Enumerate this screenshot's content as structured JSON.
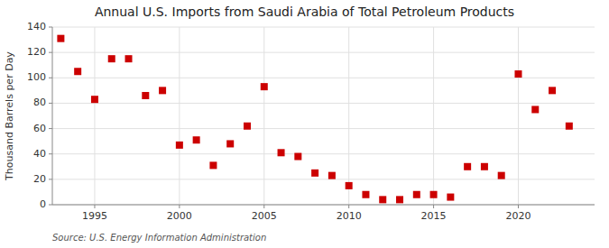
{
  "chart_data": {
    "type": "scatter",
    "title": "Annual U.S. Imports from Saudi Arabia of Total Petroleum Products",
    "y_label": "Thousand Barrels per Day",
    "annotations": [
      "Source: U.S. Energy Information Administration"
    ],
    "x": [
      1993,
      1994,
      1995,
      1996,
      1997,
      1998,
      1999,
      2000,
      2001,
      2002,
      2003,
      2004,
      2005,
      2006,
      2007,
      2008,
      2009,
      2010,
      2011,
      2012,
      2013,
      2014,
      2015,
      2016,
      2017,
      2018,
      2019,
      2020,
      2021,
      2022,
      2023
    ],
    "values": [
      131,
      105,
      83,
      115,
      115,
      86,
      90,
      47,
      51,
      31,
      48,
      62,
      93,
      41,
      38,
      25,
      23,
      15,
      8,
      4,
      4,
      8,
      8,
      6,
      30,
      30,
      23,
      103,
      75,
      90,
      62
    ],
    "color": "#cc0000",
    "marker": "square",
    "xlim": [
      1992.5,
      2024.5
    ],
    "xticks": [
      1995,
      2000,
      2005,
      2010,
      2015,
      2020
    ],
    "ylim": [
      0,
      140
    ],
    "yticks": [
      0,
      20,
      40,
      60,
      80,
      100,
      120,
      140
    ],
    "grid": true
  }
}
